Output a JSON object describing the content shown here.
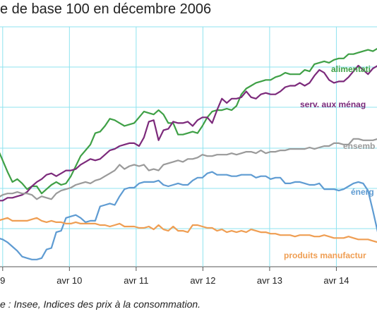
{
  "title": "e de base 100 en décembre 2006",
  "source": "e : Insee, Indices des prix à la consommation.",
  "chart_data": {
    "type": "line",
    "x_ticks": [
      "9",
      "avr 10",
      "avr 11",
      "avr 12",
      "avr 13",
      "avr 14"
    ],
    "grid": true,
    "series": [
      {
        "name": "alimentati",
        "color": "#3fa046",
        "values": [
          104.4,
          104.0,
          103.2,
          102.4,
          101.7,
          101.9,
          101.6,
          101.2,
          101.4,
          101.4,
          100.9,
          101.2,
          101.5,
          101.7,
          101.5,
          101.6,
          102.1,
          102.8,
          103.5,
          103.9,
          104.3,
          105.1,
          105.2,
          105.6,
          106.1,
          106.0,
          105.8,
          105.6,
          105.7,
          105.8,
          106.2,
          106.6,
          106.5,
          106.4,
          106.7,
          106.4,
          105.8,
          105.8,
          105.0,
          105.0,
          105.1,
          105.2,
          105.1,
          105.6,
          106.2,
          106.6,
          106.7,
          106.7,
          106.8,
          106.7,
          107.0,
          107.8,
          108.2,
          108.4,
          108.6,
          108.7,
          108.8,
          108.8,
          109.0,
          109.1,
          109.3,
          109.2,
          109.2,
          109.2,
          109.5,
          109.4,
          109.9,
          110.0,
          110.1,
          110.0,
          110.2,
          110.3,
          110.3,
          110.6,
          110.6,
          110.7,
          110.8,
          110.9,
          110.8,
          111.0,
          110.9
        ]
      },
      {
        "name": "serv. aux ménag",
        "color": "#7c2a7b",
        "values": [
          100.3,
          100.4,
          100.4,
          100.6,
          100.6,
          100.7,
          100.8,
          101.0,
          101.4,
          101.7,
          101.9,
          102.2,
          102.3,
          102.1,
          102.3,
          102.5,
          102.5,
          102.6,
          102.9,
          103.1,
          103.3,
          103.2,
          103.3,
          103.6,
          103.9,
          104.0,
          104.2,
          104.3,
          104.4,
          104.4,
          104.2,
          104.8,
          105.9,
          106.0,
          104.6,
          105.3,
          105.4,
          105.9,
          105.8,
          105.8,
          105.9,
          105.6,
          106.0,
          106.2,
          106.2,
          105.8,
          106.7,
          107.5,
          107.2,
          107.5,
          107.5,
          107.6,
          108.0,
          107.6,
          107.5,
          107.8,
          107.9,
          107.8,
          107.8,
          108.0,
          108.3,
          108.4,
          108.4,
          108.6,
          108.4,
          108.6,
          109.1,
          109.5,
          109.3,
          108.8,
          108.6,
          108.7,
          108.7,
          109.0,
          109.4,
          109.8,
          109.5,
          109.2,
          109.6,
          109.8,
          109.7
        ]
      },
      {
        "name": "ensemb",
        "color": "#9a9a9a",
        "values": [
          100.5,
          100.6,
          100.8,
          100.9,
          100.9,
          101.0,
          100.9,
          100.9,
          100.8,
          100.5,
          100.7,
          100.6,
          100.5,
          100.9,
          101.1,
          101.2,
          101.3,
          101.5,
          101.6,
          101.7,
          101.6,
          101.8,
          101.9,
          102.1,
          102.3,
          102.5,
          102.9,
          102.6,
          102.8,
          102.9,
          102.8,
          102.9,
          102.5,
          102.6,
          102.5,
          102.9,
          103.0,
          103.1,
          103.2,
          103.1,
          103.3,
          103.3,
          103.4,
          103.6,
          103.5,
          103.5,
          103.6,
          103.6,
          103.6,
          103.7,
          103.6,
          103.7,
          103.8,
          103.8,
          103.7,
          103.9,
          103.7,
          103.8,
          103.8,
          103.9,
          103.9,
          104.0,
          104.0,
          104.0,
          104.0,
          104.1,
          104.0,
          104.1,
          104.2,
          104.2,
          104.4,
          104.4,
          104.3,
          104.3,
          104.7,
          104.7,
          104.6,
          104.6,
          104.6,
          104.7,
          104.7
        ]
      },
      {
        "name": "énerg",
        "color": "#5e9bd2",
        "values": [
          97.9,
          97.8,
          97.7,
          97.5,
          97.2,
          96.9,
          96.5,
          96.4,
          96.3,
          96.3,
          96.4,
          97.0,
          97.1,
          98.2,
          98.3,
          99.2,
          99.3,
          99.4,
          99.2,
          98.9,
          99.0,
          99.0,
          100.0,
          100.1,
          100.2,
          100.1,
          100.7,
          101.2,
          101.3,
          101.3,
          101.6,
          101.7,
          101.7,
          101.7,
          101.8,
          101.5,
          101.4,
          101.5,
          101.6,
          101.5,
          101.5,
          101.8,
          102.0,
          102.0,
          102.3,
          102.4,
          102.2,
          102.2,
          102.2,
          102.1,
          102.1,
          102.2,
          102.2,
          102.2,
          102.0,
          102.1,
          102.1,
          101.9,
          102.0,
          102.0,
          101.6,
          101.6,
          101.7,
          101.7,
          101.6,
          101.5,
          101.5,
          101.6,
          101.2,
          101.2,
          101.2,
          101.1,
          101.2,
          101.4,
          101.6,
          101.7,
          101.6,
          101.1,
          99.7,
          98.2,
          98.0
        ]
      },
      {
        "name": "produits manufactur",
        "color": "#ef9e53",
        "values": [
          99.0,
          99.0,
          99.1,
          99.2,
          99.0,
          99.0,
          99.0,
          99.0,
          99.1,
          99.2,
          99.0,
          98.9,
          99.0,
          98.9,
          98.9,
          98.8,
          98.8,
          98.9,
          98.8,
          98.8,
          98.8,
          98.8,
          98.7,
          98.7,
          98.6,
          98.7,
          98.8,
          98.6,
          98.6,
          98.6,
          98.5,
          98.5,
          98.6,
          98.4,
          98.7,
          98.4,
          98.3,
          98.6,
          98.3,
          98.3,
          98.2,
          98.7,
          98.7,
          98.6,
          98.5,
          98.5,
          98.3,
          98.4,
          98.2,
          98.3,
          98.2,
          98.3,
          98.2,
          98.4,
          98.3,
          98.2,
          98.2,
          98.1,
          98.1,
          98.0,
          98.0,
          98.0,
          97.9,
          98.0,
          98.0,
          98.0,
          97.9,
          97.9,
          98.0,
          97.9,
          97.8,
          97.8,
          97.8,
          97.9,
          97.8,
          97.7,
          97.7,
          97.7,
          97.6,
          97.5,
          97.5
        ]
      }
    ]
  }
}
